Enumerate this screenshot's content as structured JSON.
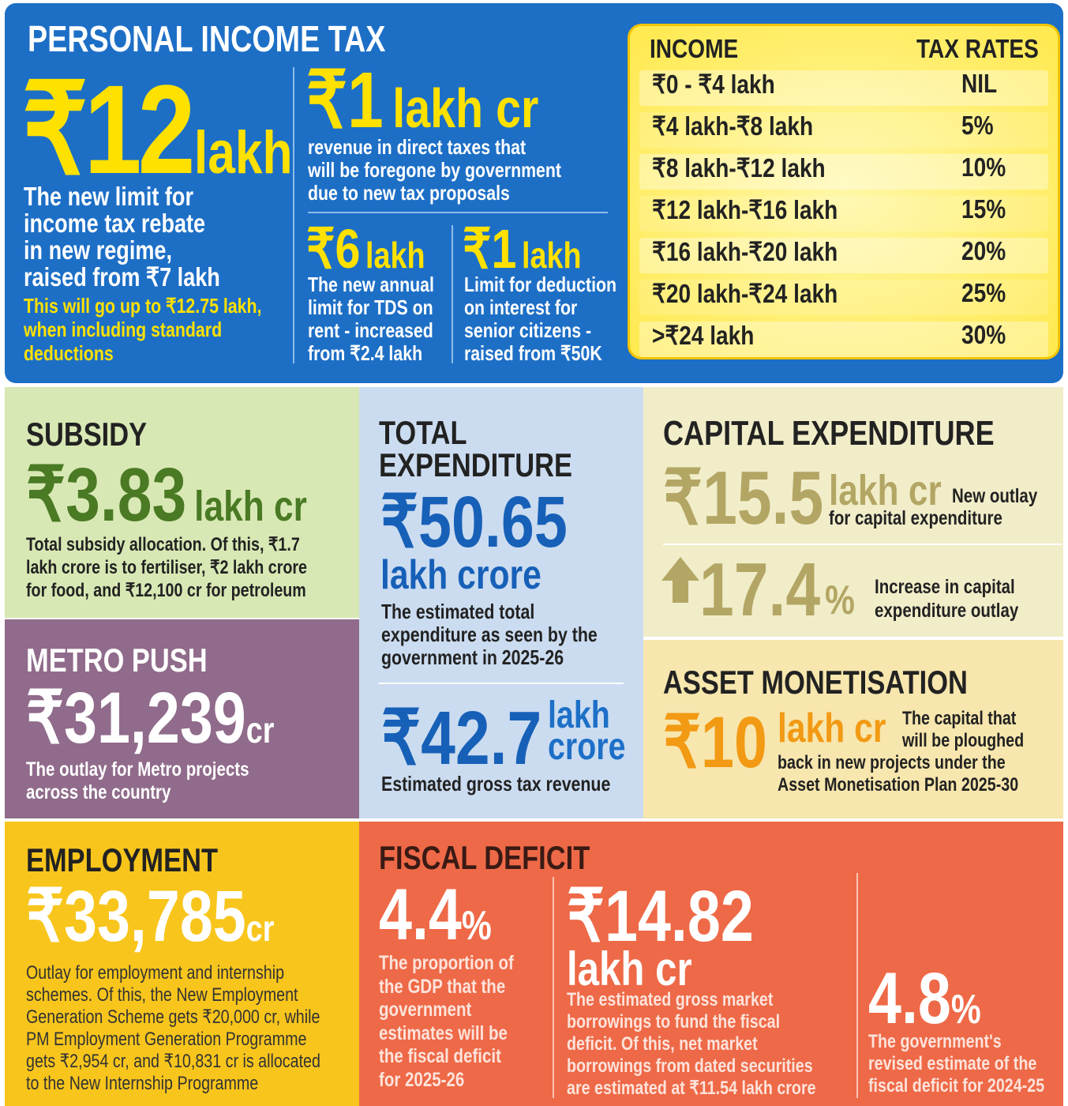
{
  "income_tax": {
    "title": "PERSONAL INCOME TAX",
    "rebate": {
      "value": "₹12",
      "unit": "lakh",
      "lines": [
        "The new limit for",
        "income tax rebate",
        "in new regime,",
        "raised from ₹7 lakh"
      ],
      "note": [
        "This will go up to ₹12.75 lakh,",
        "when including standard",
        "deductions"
      ]
    },
    "revenue": {
      "value": "₹1",
      "unit": "lakh cr",
      "lines": [
        "revenue in direct taxes that",
        "will be foregone by government",
        "due to new tax proposals"
      ]
    },
    "tds": {
      "value": "₹6",
      "unit": "lakh",
      "lines": [
        "The new annual",
        "limit for TDS on",
        "rent - increased",
        "from ₹2.4 lakh"
      ]
    },
    "deduction": {
      "value": "₹1",
      "unit": "lakh",
      "lines": [
        "Limit for deduction",
        "on interest for",
        "senior citizens -",
        "raised from ₹50K"
      ]
    },
    "table": {
      "headers": [
        "INCOME",
        "TAX RATES"
      ],
      "rows": [
        [
          "₹0 - ₹4 lakh",
          "NIL"
        ],
        [
          "₹4 lakh-₹8 lakh",
          "5%"
        ],
        [
          "₹8 lakh-₹12 lakh",
          "10%"
        ],
        [
          "₹12 lakh-₹16 lakh",
          "15%"
        ],
        [
          "₹16 lakh-₹20 lakh",
          "20%"
        ],
        [
          "₹20 lakh-₹24 lakh",
          "25%"
        ],
        [
          ">₹24 lakh",
          "30%"
        ]
      ]
    }
  },
  "subsidy": {
    "title": "SUBSIDY",
    "value": "₹3.83",
    "unit": "lakh cr",
    "lines": [
      "Total subsidy allocation. Of this, ₹1.7",
      "lakh crore is to fertiliser, ₹2 lakh crore",
      "for food, and ₹12,100 cr for petroleum"
    ]
  },
  "total_expenditure": {
    "title": [
      "TOTAL",
      "EXPENDITURE"
    ],
    "value": "₹50.65",
    "unit": "lakh crore",
    "lines": [
      "The estimated total",
      "expenditure as seen by the",
      "government in 2025-26"
    ],
    "tax_revenue": {
      "value": "₹42.7",
      "unit": [
        "lakh",
        "crore"
      ],
      "lines": [
        "Estimated gross tax revenue"
      ]
    }
  },
  "capital_expenditure": {
    "title": "CAPITAL EXPENDITURE",
    "value": "₹15.5",
    "unit": "lakh cr",
    "lines": [
      "New outlay",
      "for capital expenditure"
    ],
    "increase": {
      "value": "17.4",
      "unit": "%",
      "lines": [
        "Increase in capital",
        "expenditure outlay"
      ]
    }
  },
  "metro": {
    "title": "METRO PUSH",
    "value": "₹31,239",
    "unit": "cr",
    "lines": [
      "The outlay for Metro projects",
      "across the country"
    ]
  },
  "asset": {
    "title": "ASSET MONETISATION",
    "value": "₹10",
    "unit": "lakh cr",
    "lines": [
      "The capital that",
      "will be ploughed",
      "back in new projects under the",
      "Asset Monetisation Plan 2025-30"
    ]
  },
  "employment": {
    "title": "EMPLOYMENT",
    "value": "₹33,785",
    "unit": "cr",
    "lines": [
      "Outlay for employment and internship",
      "schemes. Of this, the New Employment",
      "Generation Scheme gets ₹20,000 cr, while",
      "PM Employment Generation Programme",
      "gets ₹2,954 cr, and ₹10,831 cr is allocated",
      "to the New Internship Programme"
    ]
  },
  "fiscal_deficit": {
    "title": "FISCAL DEFICIT",
    "items": [
      {
        "value": "4.4",
        "unit": "%",
        "lines": [
          "The proportion of",
          "the GDP that the",
          "government",
          "estimates will be",
          "the fiscal deficit",
          "for 2025-26"
        ]
      },
      {
        "value": "₹14.82",
        "unit": "lakh cr",
        "lines": [
          "The estimated gross market",
          "borrowings to fund the fiscal",
          "deficit. Of this, net market",
          "borrowings from dated securities",
          "are estimated at ₹11.54 lakh crore"
        ]
      },
      {
        "value": "4.8",
        "unit": "%",
        "lines": [
          "The government's",
          "revised estimate of the",
          "fiscal deficit for 2024-25"
        ]
      }
    ]
  }
}
